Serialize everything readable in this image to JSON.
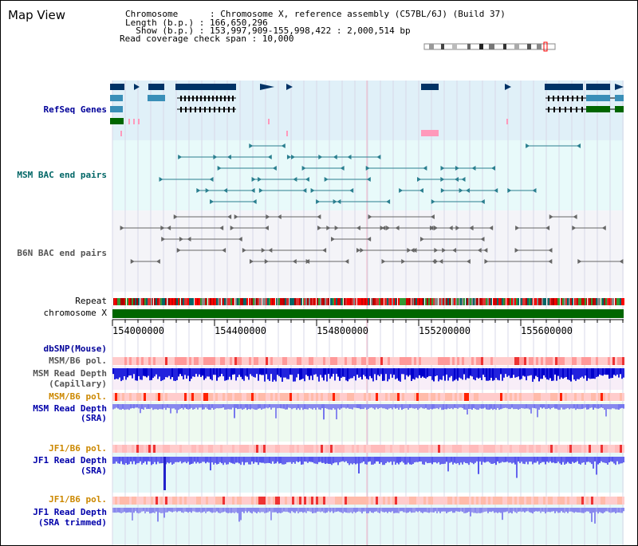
{
  "title": "Map View",
  "info": {
    "chromosome": "Chromosome      : Chromosome X, reference assembly (C57BL/6J) (Build 37)",
    "length": "Length (b.p.) : 166,650,296",
    "show": "  Show (b.p.) : 153,997,909-155,998,422 : 2,000,514 bp",
    "coverage": "Read coverage check span : 10,000"
  },
  "tracks": {
    "refseq": "RefSeq Genes",
    "msm_bac": "MSM BAC end pairs",
    "b6n_bac": "B6N BAC end pairs",
    "repeat": "Repeat",
    "chromosome": "chromosome X",
    "dbsnp": "dbSNP(Mouse)",
    "msm_b6_pol_1": "MSM/B6 pol.",
    "msm_depth_cap_1": "MSM Read Depth",
    "msm_depth_cap_2": "(Capillary)",
    "msm_b6_pol_2": "MSM/B6 pol.",
    "msm_depth_sra_1": "MSM Read Depth",
    "msm_depth_sra_2": "(SRA)",
    "jf1_b6_pol_1": "JF1/B6 pol.",
    "jf1_depth_sra_1": "JF1 Read Depth",
    "jf1_depth_sra_2": "(SRA)",
    "jf1_b6_pol_2": "JF1/B6 pol.",
    "jf1_depth_trim_1": "JF1 Read Depth",
    "jf1_depth_trim_2": "(SRA trimmed)"
  },
  "axis": {
    "ticks": [
      "154000000",
      "154400000",
      "154800000",
      "155200000",
      "155600000"
    ]
  },
  "colors": {
    "refseq_label": "#000099",
    "msm_label": "#006666",
    "b6n_label": "#555555",
    "orange_label": "#cc8800",
    "blue_label": "#0000aa",
    "chromosome_bar": "#006600"
  }
}
